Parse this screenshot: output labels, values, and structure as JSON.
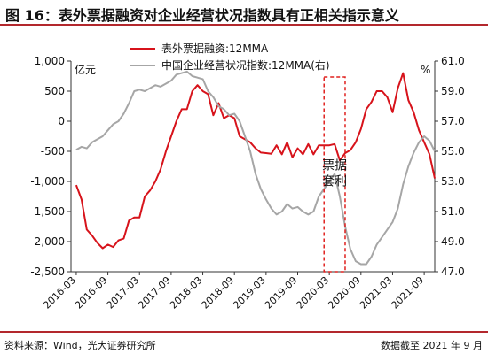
{
  "figure": {
    "title": "图 16：表外票据融资对企业经营状况指数具有正相关指示意义",
    "source": "资料来源：Wind，光大证券研究所",
    "date_note": "数据截至 2021 年 9 月"
  },
  "colors": {
    "accent": "#b3282d",
    "series_red": "#d7131b",
    "series_gray": "#a6a6a6",
    "annotation": "#e0201e"
  },
  "chart_data": {
    "type": "line",
    "left_unit": "亿元",
    "right_unit": "%",
    "left_axis": {
      "ylim": [
        -2500,
        1000
      ],
      "ticks": [
        1000,
        500,
        0,
        -500,
        -1000,
        -1500,
        -2000,
        -2500
      ],
      "tick_labels": [
        "1,000",
        "500",
        "0",
        "-500",
        "-1,000",
        "-1,500",
        "-2,000",
        "-2,500"
      ]
    },
    "right_axis": {
      "ylim": [
        47.0,
        61.0
      ],
      "ticks": [
        61.0,
        59.0,
        57.0,
        55.0,
        53.0,
        51.0,
        49.0,
        47.0
      ],
      "tick_labels": [
        "61.0",
        "59.0",
        "57.0",
        "55.0",
        "53.0",
        "51.0",
        "49.0",
        "47.0"
      ]
    },
    "x_axis": {
      "range": [
        "2016-02",
        "2021-11"
      ],
      "tick_labels": [
        "2016-03",
        "2016-09",
        "2017-03",
        "2017-09",
        "2018-03",
        "2018-09",
        "2019-03",
        "2019-09",
        "2020-03",
        "2020-09",
        "2021-03",
        "2021-09"
      ]
    },
    "grid": false,
    "legend_position": "top-left",
    "series": [
      {
        "name": "表外票据融资:12MMA",
        "axis": "left",
        "points": [
          [
            "2016-03",
            -1060
          ],
          [
            "2016-04",
            -1300
          ],
          [
            "2016-05",
            -1800
          ],
          [
            "2016-06",
            -1900
          ],
          [
            "2016-07",
            -2020
          ],
          [
            "2016-08",
            -2110
          ],
          [
            "2016-09",
            -2050
          ],
          [
            "2016-10",
            -2090
          ],
          [
            "2016-11",
            -1980
          ],
          [
            "2016-12",
            -1950
          ],
          [
            "2017-01",
            -1650
          ],
          [
            "2017-02",
            -1600
          ],
          [
            "2017-03",
            -1600
          ],
          [
            "2017-04",
            -1250
          ],
          [
            "2017-05",
            -1150
          ],
          [
            "2017-06",
            -1000
          ],
          [
            "2017-07",
            -800
          ],
          [
            "2017-08",
            -500
          ],
          [
            "2017-09",
            -250
          ],
          [
            "2017-10",
            0
          ],
          [
            "2017-11",
            200
          ],
          [
            "2017-12",
            200
          ],
          [
            "2018-01",
            500
          ],
          [
            "2018-02",
            600
          ],
          [
            "2018-03",
            500
          ],
          [
            "2018-04",
            450
          ],
          [
            "2018-05",
            100
          ],
          [
            "2018-06",
            300
          ],
          [
            "2018-07",
            50
          ],
          [
            "2018-08",
            100
          ],
          [
            "2018-09",
            50
          ],
          [
            "2018-10",
            -250
          ],
          [
            "2018-11",
            -300
          ],
          [
            "2018-12",
            -350
          ],
          [
            "2019-01",
            -450
          ],
          [
            "2019-02",
            -520
          ],
          [
            "2019-03",
            -530
          ],
          [
            "2019-04",
            -540
          ],
          [
            "2019-05",
            -400
          ],
          [
            "2019-06",
            -550
          ],
          [
            "2019-07",
            -350
          ],
          [
            "2019-08",
            -600
          ],
          [
            "2019-09",
            -450
          ],
          [
            "2019-10",
            -550
          ],
          [
            "2019-11",
            -380
          ],
          [
            "2019-12",
            -550
          ],
          [
            "2020-01",
            -400
          ],
          [
            "2020-02",
            -400
          ],
          [
            "2020-03",
            -400
          ],
          [
            "2020-04",
            -380
          ],
          [
            "2020-05",
            -650
          ],
          [
            "2020-06",
            -530
          ],
          [
            "2020-07",
            -480
          ],
          [
            "2020-08",
            -350
          ],
          [
            "2020-09",
            -130
          ],
          [
            "2020-10",
            200
          ],
          [
            "2020-11",
            320
          ],
          [
            "2020-12",
            500
          ],
          [
            "2021-01",
            500
          ],
          [
            "2021-02",
            400
          ],
          [
            "2021-03",
            150
          ],
          [
            "2021-04",
            550
          ],
          [
            "2021-05",
            800
          ],
          [
            "2021-06",
            350
          ],
          [
            "2021-07",
            150
          ],
          [
            "2021-08",
            -150
          ],
          [
            "2021-09",
            -350
          ],
          [
            "2021-10",
            -550
          ],
          [
            "2021-11",
            -950
          ]
        ]
      },
      {
        "name": "中国企业经营状况指数:12MMA(右)",
        "axis": "right",
        "points": [
          [
            "2016-03",
            55.1
          ],
          [
            "2016-04",
            55.3
          ],
          [
            "2016-05",
            55.2
          ],
          [
            "2016-06",
            55.6
          ],
          [
            "2016-07",
            55.8
          ],
          [
            "2016-08",
            56.0
          ],
          [
            "2016-09",
            56.4
          ],
          [
            "2016-10",
            56.8
          ],
          [
            "2016-11",
            57.0
          ],
          [
            "2016-12",
            57.5
          ],
          [
            "2017-01",
            58.2
          ],
          [
            "2017-02",
            59.0
          ],
          [
            "2017-03",
            59.1
          ],
          [
            "2017-04",
            59.0
          ],
          [
            "2017-05",
            59.2
          ],
          [
            "2017-06",
            59.4
          ],
          [
            "2017-07",
            59.3
          ],
          [
            "2017-08",
            59.5
          ],
          [
            "2017-09",
            59.7
          ],
          [
            "2017-10",
            60.1
          ],
          [
            "2017-11",
            60.2
          ],
          [
            "2017-12",
            60.3
          ],
          [
            "2018-01",
            60.0
          ],
          [
            "2018-02",
            59.9
          ],
          [
            "2018-03",
            59.8
          ],
          [
            "2018-04",
            59.0
          ],
          [
            "2018-05",
            58.6
          ],
          [
            "2018-06",
            58.0
          ],
          [
            "2018-07",
            57.8
          ],
          [
            "2018-08",
            57.4
          ],
          [
            "2018-09",
            57.5
          ],
          [
            "2018-10",
            57.0
          ],
          [
            "2018-11",
            56.0
          ],
          [
            "2018-12",
            55.0
          ],
          [
            "2019-01",
            53.5
          ],
          [
            "2019-02",
            52.5
          ],
          [
            "2019-03",
            51.8
          ],
          [
            "2019-04",
            51.2
          ],
          [
            "2019-05",
            50.8
          ],
          [
            "2019-06",
            51.0
          ],
          [
            "2019-07",
            51.5
          ],
          [
            "2019-08",
            51.2
          ],
          [
            "2019-09",
            51.3
          ],
          [
            "2019-10",
            51.0
          ],
          [
            "2019-11",
            50.8
          ],
          [
            "2019-12",
            51.0
          ],
          [
            "2020-01",
            52.0
          ],
          [
            "2020-02",
            52.5
          ],
          [
            "2020-03",
            53.0
          ],
          [
            "2020-04",
            53.5
          ],
          [
            "2020-05",
            52.0
          ],
          [
            "2020-06",
            50.0
          ],
          [
            "2020-07",
            48.5
          ],
          [
            "2020-08",
            47.7
          ],
          [
            "2020-09",
            47.5
          ],
          [
            "2020-10",
            47.5
          ],
          [
            "2020-11",
            48.0
          ],
          [
            "2020-12",
            48.8
          ],
          [
            "2021-01",
            49.3
          ],
          [
            "2021-02",
            49.8
          ],
          [
            "2021-03",
            50.3
          ],
          [
            "2021-04",
            51.2
          ],
          [
            "2021-05",
            52.8
          ],
          [
            "2021-06",
            54.0
          ],
          [
            "2021-07",
            54.9
          ],
          [
            "2021-08",
            55.6
          ],
          [
            "2021-09",
            56.0
          ],
          [
            "2021-10",
            55.7
          ],
          [
            "2021-11",
            55.0
          ]
        ]
      }
    ],
    "annotation": {
      "text_line1": "票据",
      "text_line2": "套利",
      "x_range": [
        "2020-02",
        "2020-06"
      ],
      "style": "dashed box"
    }
  }
}
